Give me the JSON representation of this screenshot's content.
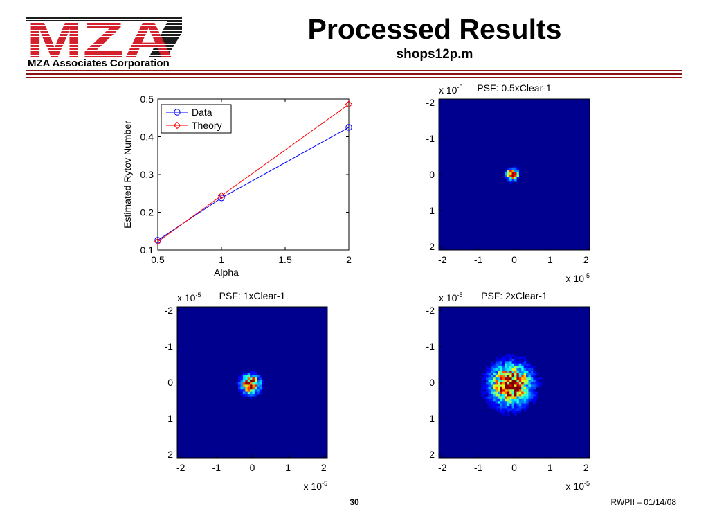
{
  "header": {
    "logo_text": "MZA",
    "company": "MZA Associates Corporation",
    "title": "Processed Results",
    "subtitle": "shops12p.m"
  },
  "footer": {
    "page_number": "30",
    "note": "RWPII – 01/14/08"
  },
  "colors": {
    "logo_red": "#d3212d",
    "logo_black": "#1c1c1c",
    "header_rule": "#8a1414"
  },
  "chart_data": [
    {
      "type": "line",
      "xlabel": "Alpha",
      "ylabel": "Estimated Rytov Number",
      "x": [
        0.5,
        1,
        2
      ],
      "series": [
        {
          "name": "Data",
          "values": [
            0.126,
            0.238,
            0.425
          ],
          "color": "#0000ff",
          "marker": "circle"
        },
        {
          "name": "Theory",
          "values": [
            0.122,
            0.244,
            0.486
          ],
          "color": "#ff0000",
          "marker": "diamond"
        }
      ],
      "xlim": [
        0.5,
        2
      ],
      "ylim": [
        0.1,
        0.5
      ],
      "xticks": [
        0.5,
        1,
        1.5,
        2
      ],
      "xtick_labels": [
        "0.5",
        "1",
        "1.5",
        "2"
      ],
      "yticks": [
        0.1,
        0.2,
        0.3,
        0.4,
        0.5
      ],
      "ytick_labels": [
        "0.1",
        "0.2",
        "0.3",
        "0.4",
        "0.5"
      ],
      "grid": false,
      "legend": "top-left"
    },
    {
      "type": "heatmap",
      "title": "PSF: 0.5xClear-1",
      "colormap": "jet",
      "background_color": "#00008f",
      "xlim": [
        -2.1,
        2.1
      ],
      "ylim": [
        -2.1,
        2.1
      ],
      "y_direction": "reverse",
      "xticks": [
        -2,
        -1,
        0,
        1,
        2
      ],
      "xtick_labels": [
        "-2",
        "-1",
        "0",
        "1",
        "2"
      ],
      "yticks": [
        -2,
        -1,
        0,
        1,
        2
      ],
      "ytick_labels": [
        "-2",
        "-1",
        "0",
        "1",
        "2"
      ],
      "multiplier": {
        "base": "x 10",
        "exponent": "-5"
      },
      "spot": {
        "center": [
          -0.05,
          0.0
        ],
        "diameter": 0.4
      }
    },
    {
      "type": "heatmap",
      "title": "PSF: 1xClear-1",
      "colormap": "jet",
      "background_color": "#00008f",
      "xlim": [
        -2.1,
        2.1
      ],
      "ylim": [
        -2.1,
        2.1
      ],
      "y_direction": "reverse",
      "xticks": [
        -2,
        -1,
        0,
        1,
        2
      ],
      "xtick_labels": [
        "-2",
        "-1",
        "0",
        "1",
        "2"
      ],
      "yticks": [
        -2,
        -1,
        0,
        1,
        2
      ],
      "ytick_labels": [
        "-2",
        "-1",
        "0",
        "1",
        "2"
      ],
      "multiplier": {
        "base": "x 10",
        "exponent": "-5"
      },
      "spot": {
        "center": [
          -0.05,
          0.05
        ],
        "diameter": 0.65
      }
    },
    {
      "type": "heatmap",
      "title": "PSF: 2xClear-1",
      "colormap": "jet",
      "background_color": "#00008f",
      "xlim": [
        -2.1,
        2.1
      ],
      "ylim": [
        -2.1,
        2.1
      ],
      "y_direction": "reverse",
      "xticks": [
        -2,
        -1,
        0,
        1,
        2
      ],
      "xtick_labels": [
        "-2",
        "-1",
        "0",
        "1",
        "2"
      ],
      "yticks": [
        -2,
        -1,
        0,
        1,
        2
      ],
      "ytick_labels": [
        "-2",
        "-1",
        "0",
        "1",
        "2"
      ],
      "multiplier": {
        "base": "x 10",
        "exponent": "-5"
      },
      "spot": {
        "center": [
          -0.1,
          0.06
        ],
        "diameter": 1.4
      }
    }
  ]
}
